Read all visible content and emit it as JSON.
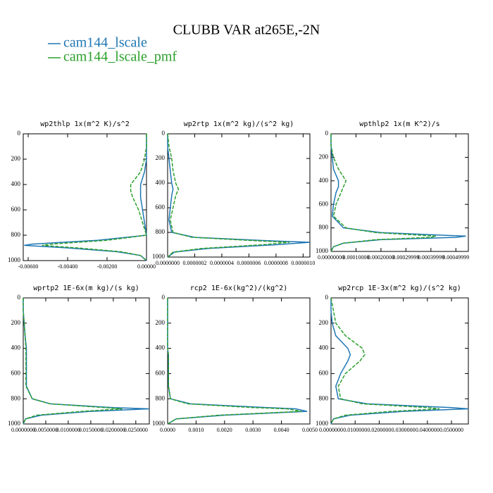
{
  "title": "CLUBB VAR at265E,-2N",
  "legend": [
    {
      "name": "cam144_lscale",
      "color": "#1f77b4"
    },
    {
      "name": "cam144_lscale_pmf",
      "color": "#2ca02c"
    }
  ],
  "chart_data": [
    {
      "type": "line",
      "title": "wp2thlp   1x(m^2 K)/s^2",
      "y": [
        0,
        100,
        200,
        300,
        400,
        450,
        500,
        600,
        700,
        800,
        840,
        870,
        880,
        900,
        930,
        960,
        1000
      ],
      "series": [
        {
          "color": "#1f77b4",
          "dashed": false,
          "values": [
            0,
            0,
            0,
            -0.0001,
            -0.0003,
            -0.0003,
            -0.0003,
            -0.0002,
            -0.0001,
            0,
            -0.0025,
            -0.0058,
            -0.0062,
            -0.004,
            -0.0015,
            -0.0003,
            0
          ]
        },
        {
          "color": "#2ca02c",
          "dashed": true,
          "values": [
            0,
            0,
            -0.0001,
            -0.0003,
            -0.0008,
            -0.0008,
            -0.0007,
            -0.0004,
            -0.0002,
            0,
            -0.002,
            -0.0048,
            -0.0053,
            -0.0035,
            -0.0013,
            -0.0003,
            0
          ]
        }
      ],
      "xlim": [
        -0.00625,
        0
      ],
      "xticks": [
        {
          "value": -0.006,
          "label": "-0.00600"
        },
        {
          "value": -0.004,
          "label": "-0.00400"
        },
        {
          "value": -0.002,
          "label": "-0.00200"
        },
        {
          "value": 0,
          "label": "0.00000"
        }
      ],
      "ylim": [
        1000,
        0
      ],
      "yticks": [
        0,
        200,
        400,
        600,
        800,
        1000
      ]
    },
    {
      "type": "line",
      "title": "wp2rtp   1x(m^2 kg)/(s^2 kg)",
      "y": [
        0,
        100,
        200,
        300,
        400,
        450,
        500,
        600,
        700,
        800,
        840,
        870,
        880,
        900,
        930,
        960,
        1000
      ],
      "series": [
        {
          "color": "#1f77b4",
          "dashed": false,
          "values": [
            0,
            0,
            1e-08,
            2e-08,
            3e-08,
            4e-08,
            3e-08,
            2e-08,
            1e-08,
            3e-08,
            2e-07,
            8e-07,
            1.05e-06,
            8e-07,
            3e-07,
            5e-08,
            0
          ]
        },
        {
          "color": "#2ca02c",
          "dashed": true,
          "values": [
            0,
            1e-08,
            3e-08,
            4e-08,
            6e-08,
            8e-08,
            6e-08,
            4e-08,
            2e-08,
            4e-08,
            1.8e-07,
            7e-07,
            9e-07,
            7e-07,
            2.5e-07,
            4e-08,
            0
          ]
        }
      ],
      "xlim": [
        0,
        1.05e-06
      ],
      "xticks": [
        {
          "value": 0,
          "label": "0.0000000"
        },
        {
          "value": 2e-07,
          "label": "0.0000002"
        },
        {
          "value": 4e-07,
          "label": "0.0000004"
        },
        {
          "value": 6e-07,
          "label": "0.0000006"
        },
        {
          "value": 8e-07,
          "label": "0.0000008"
        },
        {
          "value": 1e-06,
          "label": "0.0000010"
        }
      ],
      "ylim": [
        1000,
        0
      ],
      "yticks": [
        0,
        200,
        400,
        600,
        800,
        1000
      ]
    },
    {
      "type": "line",
      "title": "wpthlp2   1x(m K^2)/s",
      "y": [
        0,
        100,
        200,
        300,
        400,
        450,
        500,
        600,
        700,
        800,
        840,
        870,
        880,
        900,
        930,
        960,
        1000
      ],
      "series": [
        {
          "color": "#1f77b4",
          "dashed": false,
          "values": [
            0,
            0,
            5e-06,
            1e-05,
            3e-05,
            3e-05,
            2e-05,
            1e-05,
            5e-06,
            5e-05,
            0.0002,
            0.00054,
            0.0005,
            0.0002,
            5e-05,
            1e-05,
            0
          ]
        },
        {
          "color": "#2ca02c",
          "dashed": true,
          "values": [
            0,
            0,
            1e-05,
            3e-05,
            6e-05,
            5e-05,
            4e-05,
            2e-05,
            1e-05,
            6e-05,
            0.00018,
            0.00042,
            0.0004,
            0.00018,
            5e-05,
            1e-05,
            0
          ]
        }
      ],
      "xlim": [
        0,
        0.00055
      ],
      "xticks": [
        {
          "value": 0,
          "label": "0.00000000"
        },
        {
          "value": 0.0001,
          "label": "0.00010000"
        },
        {
          "value": 0.0002,
          "label": "0.00020000"
        },
        {
          "value": 0.0003,
          "label": "0.00029999"
        },
        {
          "value": 0.0004,
          "label": "0.00039999"
        },
        {
          "value": 0.0005,
          "label": "0.00049999"
        }
      ],
      "ylim": [
        1000,
        0
      ],
      "yticks": [
        0,
        200,
        400,
        600,
        800,
        1000
      ]
    },
    {
      "type": "line",
      "title": "wprtp2   1E-6x(m kg)/(s kg)",
      "y": [
        0,
        100,
        200,
        300,
        400,
        450,
        500,
        600,
        700,
        800,
        840,
        870,
        880,
        900,
        930,
        960,
        1000
      ],
      "series": [
        {
          "color": "#1f77b4",
          "dashed": false,
          "values": [
            0,
            0,
            0.0002,
            0.0004,
            0.0007,
            0.0007,
            0.0007,
            0.0007,
            0.0007,
            0.002,
            0.006,
            0.02,
            0.028,
            0.015,
            0.004,
            0.0005,
            0
          ]
        },
        {
          "color": "#2ca02c",
          "dashed": true,
          "values": [
            0,
            0,
            0.0002,
            0.0004,
            0.0006,
            0.0006,
            0.0006,
            0.0006,
            0.0006,
            0.002,
            0.006,
            0.018,
            0.022,
            0.013,
            0.003,
            0.0005,
            0
          ]
        }
      ],
      "xlim": [
        0,
        0.028
      ],
      "xticks": [
        {
          "value": 0,
          "label": "0.0000000"
        },
        {
          "value": 0.005,
          "label": "0.0050000"
        },
        {
          "value": 0.01,
          "label": "0.0100000"
        },
        {
          "value": 0.015,
          "label": "0.0150000"
        },
        {
          "value": 0.02,
          "label": "0.0200000"
        },
        {
          "value": 0.025,
          "label": "0.0250000"
        }
      ],
      "ylim": [
        1000,
        0
      ],
      "yticks": [
        0,
        200,
        400,
        600,
        800,
        1000
      ]
    },
    {
      "type": "line",
      "title": "rcp2   1E-6x(kg^2)/(kg^2)",
      "y": [
        0,
        100,
        200,
        300,
        400,
        450,
        500,
        600,
        700,
        800,
        840,
        870,
        880,
        900,
        930,
        960,
        1000
      ],
      "series": [
        {
          "color": "#1f77b4",
          "dashed": false,
          "values": [
            0,
            0,
            0,
            0,
            0,
            3e-05,
            3e-05,
            3e-05,
            3e-05,
            0.0001,
            0.0008,
            0.0035,
            0.0045,
            0.0049,
            0.002,
            0.0003,
            0
          ]
        },
        {
          "color": "#2ca02c",
          "dashed": true,
          "values": [
            0,
            0,
            0,
            0,
            0,
            3e-05,
            3e-05,
            3e-05,
            3e-05,
            0.0001,
            0.0007,
            0.003,
            0.0042,
            0.0047,
            0.0018,
            0.0003,
            0
          ]
        }
      ],
      "xlim": [
        0,
        0.005
      ],
      "xticks": [
        {
          "value": 0,
          "label": "0.0000"
        },
        {
          "value": 0.001,
          "label": "0.0010"
        },
        {
          "value": 0.002,
          "label": "0.0020"
        },
        {
          "value": 0.003,
          "label": "0.0030"
        },
        {
          "value": 0.004,
          "label": "0.0040"
        },
        {
          "value": 0.005,
          "label": "0.0050"
        }
      ],
      "ylim": [
        1000,
        0
      ],
      "yticks": [
        0,
        200,
        400,
        600,
        800,
        1000
      ]
    },
    {
      "type": "line",
      "title": "wp2rcp   1E-3x(m^2 kg)/(s^2 kg)",
      "y": [
        0,
        100,
        200,
        300,
        400,
        450,
        500,
        600,
        700,
        800,
        840,
        870,
        880,
        900,
        930,
        960,
        1000
      ],
      "series": [
        {
          "color": "#1f77b4",
          "dashed": false,
          "values": [
            0,
            0,
            0.0005,
            0.002,
            0.007,
            0.008,
            0.007,
            0.004,
            0.002,
            0.003,
            0.015,
            0.05,
            0.057,
            0.03,
            0.008,
            0.001,
            0
          ]
        },
        {
          "color": "#2ca02c",
          "dashed": true,
          "values": [
            0,
            0.001,
            0.002,
            0.006,
            0.013,
            0.014,
            0.012,
            0.006,
            0.003,
            0.004,
            0.013,
            0.04,
            0.045,
            0.025,
            0.006,
            0.001,
            0
          ]
        }
      ],
      "xlim": [
        0,
        0.057
      ],
      "xticks": [
        {
          "value": 0,
          "label": "0.0000000"
        },
        {
          "value": 0.01,
          "label": "0.0100000"
        },
        {
          "value": 0.02,
          "label": "0.0200000"
        },
        {
          "value": 0.03,
          "label": "0.0300000"
        },
        {
          "value": 0.04,
          "label": "0.0400000"
        },
        {
          "value": 0.05,
          "label": "0.0500000"
        }
      ],
      "ylim": [
        1000,
        0
      ],
      "yticks": [
        0,
        200,
        400,
        600,
        800,
        1000
      ]
    }
  ]
}
